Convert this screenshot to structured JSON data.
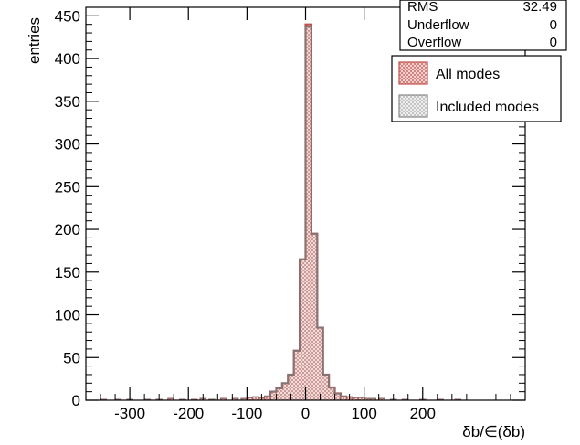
{
  "chart_data": {
    "type": "bar",
    "xlabel": "δb/∈(δb)",
    "ylabel": "entries",
    "xlim": [
      -375,
      375
    ],
    "ylim": [
      0,
      460
    ],
    "x_ticks": [
      -300,
      -200,
      -100,
      0,
      100,
      200
    ],
    "y_ticks": [
      0,
      50,
      100,
      150,
      200,
      250,
      300,
      350,
      400,
      450
    ],
    "bin_width": 10,
    "series": [
      {
        "name": "All modes",
        "color": "#c0504d",
        "bins": [
          {
            "x": -55,
            "value": 10
          },
          {
            "x": -45,
            "value": 14
          },
          {
            "x": -35,
            "value": 20
          },
          {
            "x": -25,
            "value": 30
          },
          {
            "x": -15,
            "value": 58
          },
          {
            "x": -5,
            "value": 165
          },
          {
            "x": 5,
            "value": 440
          },
          {
            "x": 15,
            "value": 195
          },
          {
            "x": 25,
            "value": 85
          },
          {
            "x": 35,
            "value": 30
          },
          {
            "x": 45,
            "value": 15
          },
          {
            "x": 55,
            "value": 8
          }
        ]
      },
      {
        "name": "Included modes",
        "color": "#808080",
        "bins": [
          {
            "x": -55,
            "value": 10
          },
          {
            "x": -45,
            "value": 14
          },
          {
            "x": -35,
            "value": 20
          },
          {
            "x": -25,
            "value": 30
          },
          {
            "x": -15,
            "value": 58
          },
          {
            "x": -5,
            "value": 165
          },
          {
            "x": 5,
            "value": 437
          },
          {
            "x": 15,
            "value": 195
          },
          {
            "x": 25,
            "value": 85
          },
          {
            "x": 35,
            "value": 30
          },
          {
            "x": 45,
            "value": 15
          },
          {
            "x": 55,
            "value": 8
          }
        ]
      }
    ],
    "stats": [
      {
        "label": "RMS",
        "value": "32.49"
      },
      {
        "label": "Underflow",
        "value": "0"
      },
      {
        "label": "Overflow",
        "value": "0"
      }
    ],
    "legend": [
      "All modes",
      "Included modes"
    ],
    "legend_position": "top-right"
  }
}
